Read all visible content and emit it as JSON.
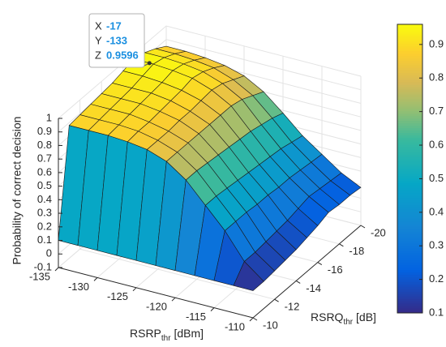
{
  "chart_data": {
    "type": "surface",
    "colormap": "parula",
    "zlabel": "Probability of correct decision",
    "xlabel": {
      "main": "RSRQ",
      "sub": "thr",
      "unit": " [dB]"
    },
    "ylabel": {
      "main": "RSRP",
      "sub": "thr",
      "unit": " [dBm]"
    },
    "x": [
      -20,
      -19,
      -18,
      -17,
      -16,
      -15,
      -14,
      -13,
      -12,
      -11,
      -10
    ],
    "y": [
      -135,
      -132.5,
      -130,
      -127.5,
      -125,
      -122.5,
      -120,
      -117.5,
      -115,
      -112.5,
      -110
    ],
    "z": [
      [
        0.85,
        0.85,
        0.84,
        0.82,
        0.78,
        0.7,
        0.58,
        0.45,
        0.35,
        0.25,
        0.18
      ],
      [
        0.9,
        0.9,
        0.89,
        0.87,
        0.82,
        0.74,
        0.61,
        0.47,
        0.36,
        0.26,
        0.19
      ],
      [
        0.94,
        0.94,
        0.93,
        0.91,
        0.86,
        0.78,
        0.63,
        0.49,
        0.37,
        0.27,
        0.19
      ],
      [
        0.96,
        0.96,
        0.95,
        0.93,
        0.88,
        0.8,
        0.65,
        0.5,
        0.38,
        0.28,
        0.2
      ],
      [
        0.94,
        0.94,
        0.93,
        0.91,
        0.87,
        0.8,
        0.66,
        0.51,
        0.38,
        0.26,
        0.17
      ],
      [
        0.92,
        0.92,
        0.92,
        0.9,
        0.86,
        0.8,
        0.67,
        0.52,
        0.39,
        0.24,
        0.15
      ],
      [
        0.91,
        0.91,
        0.91,
        0.89,
        0.86,
        0.8,
        0.68,
        0.53,
        0.39,
        0.23,
        0.13
      ],
      [
        0.9,
        0.9,
        0.9,
        0.88,
        0.85,
        0.8,
        0.69,
        0.54,
        0.4,
        0.22,
        0.12
      ],
      [
        0.89,
        0.89,
        0.89,
        0.88,
        0.85,
        0.8,
        0.7,
        0.55,
        0.4,
        0.21,
        0.11
      ],
      [
        0.88,
        0.88,
        0.88,
        0.87,
        0.85,
        0.8,
        0.7,
        0.55,
        0.4,
        0.21,
        0.1
      ],
      [
        0.1,
        0.1,
        0.1,
        0.1,
        0.1,
        0.1,
        0.1,
        0.1,
        0.1,
        0.1,
        0.1
      ]
    ],
    "xlim": [
      -20,
      -10
    ],
    "xticks": [
      -20,
      -18,
      -16,
      -14,
      -12,
      -10
    ],
    "ylim": [
      -135,
      -110
    ],
    "yticks": [
      -135,
      -130,
      -125,
      -120,
      -115,
      -110
    ],
    "zlim": [
      -0.1,
      1
    ],
    "zticks": [
      -0.1,
      0,
      0.1,
      0.2,
      0.3,
      0.4,
      0.5,
      0.6,
      0.7,
      0.8,
      0.9,
      1
    ],
    "clim": [
      0.1,
      0.96
    ],
    "cticks": [
      0.1,
      0.2,
      0.3,
      0.4,
      0.5,
      0.6,
      0.7,
      0.8,
      0.9
    ],
    "grid": true,
    "datatip": {
      "x_name": "X",
      "y_name": "Y",
      "z_name": "Z",
      "x": -17,
      "y": -133,
      "z": 0.9596
    }
  }
}
